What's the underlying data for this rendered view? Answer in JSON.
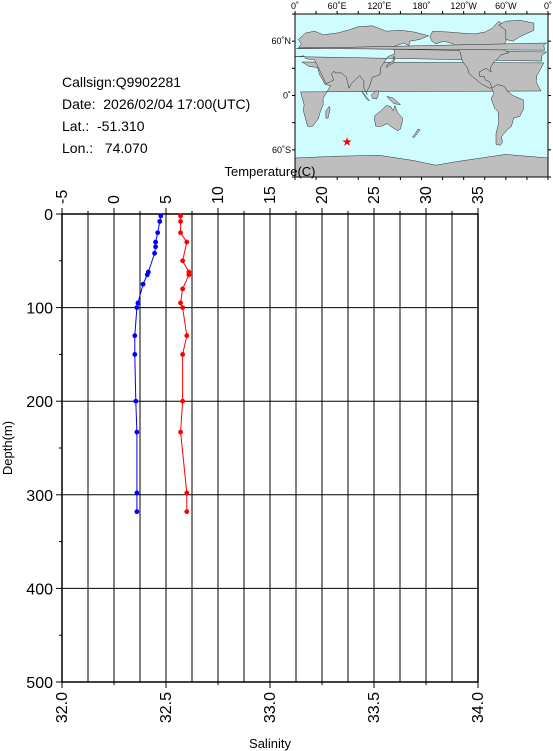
{
  "info": {
    "callsign": "Callsign:Q9902281",
    "date": "Date:  2026/02/04 17:00(UTC)",
    "lat": "Lat.:  -51.310",
    "lon": "Lon.:   74.070"
  },
  "map": {
    "lon_ticks": [
      "0˚",
      "60˚E",
      "120˚E",
      "180˚",
      "120˚W",
      "60˚W",
      "0˚"
    ],
    "lat_ticks": [
      "60˚N",
      "0˚",
      "60˚S"
    ],
    "ocean_color": "#cffcff",
    "land_color": "#bebebe",
    "marker": {
      "lat": -51.31,
      "lon": 74.07,
      "color": "#ff0000",
      "icon": "star-icon"
    }
  },
  "chart_data": {
    "type": "line",
    "ylabel": "Depth(m)",
    "y_axis": {
      "range": [
        0,
        500
      ],
      "inverted": true,
      "ticks": [
        0,
        100,
        200,
        300,
        400,
        500
      ]
    },
    "x_top": {
      "label": "Temperature(C)",
      "range": [
        -5,
        35
      ],
      "ticks": [
        "-5",
        "0",
        "5",
        "10",
        "15",
        "20",
        "25",
        "30",
        "35"
      ]
    },
    "x_bottom": {
      "label": "Salinity",
      "range": [
        32.0,
        34.0
      ],
      "ticks": [
        "32.0",
        "32.5",
        "33.0",
        "33.5",
        "34.0"
      ]
    },
    "grid": true,
    "series": [
      {
        "axis": "top",
        "color": "#0000ff",
        "points": [
          [
            4.5,
            2
          ],
          [
            4.4,
            8
          ],
          [
            4.2,
            20
          ],
          [
            4.0,
            30
          ],
          [
            4.0,
            35
          ],
          [
            3.9,
            42
          ],
          [
            3.3,
            62
          ],
          [
            3.2,
            65
          ],
          [
            2.8,
            75
          ],
          [
            2.3,
            95
          ],
          [
            2.2,
            100
          ],
          [
            2.0,
            130
          ],
          [
            2.0,
            150
          ],
          [
            2.1,
            200
          ],
          [
            2.2,
            233
          ],
          [
            2.2,
            298
          ],
          [
            2.2,
            318
          ]
        ]
      },
      {
        "axis": "bottom",
        "color": "#ff0000",
        "points": [
          [
            32.57,
            2
          ],
          [
            32.57,
            8
          ],
          [
            32.57,
            20
          ],
          [
            32.6,
            30
          ],
          [
            32.58,
            50
          ],
          [
            32.61,
            62
          ],
          [
            32.61,
            65
          ],
          [
            32.58,
            80
          ],
          [
            32.57,
            95
          ],
          [
            32.58,
            100
          ],
          [
            32.6,
            130
          ],
          [
            32.58,
            150
          ],
          [
            32.58,
            200
          ],
          [
            32.57,
            233
          ],
          [
            32.6,
            298
          ],
          [
            32.6,
            318
          ]
        ]
      }
    ]
  }
}
